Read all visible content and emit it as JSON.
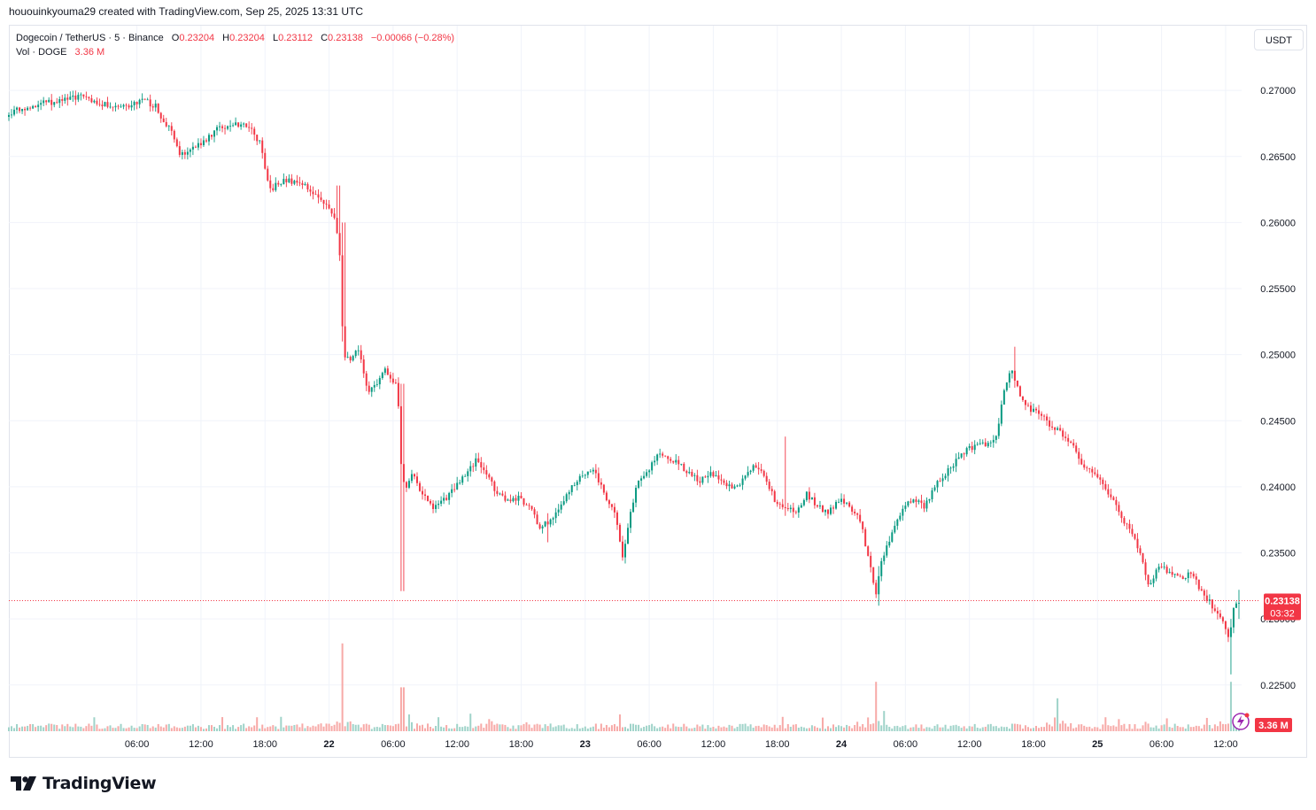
{
  "header": {
    "attribution": "hououinkyouma29 created with TradingView.com, Sep 25, 2025 13:31 UTC"
  },
  "legend": {
    "symbol": "Dogecoin / TetherUS · 5 · Binance",
    "open_label": "O",
    "open": "0.23204",
    "high_label": "H",
    "high": "0.23204",
    "low_label": "L",
    "low": "0.23112",
    "close_label": "C",
    "close": "0.23138",
    "change": "−0.00066 (−0.28%)",
    "vol_label": "Vol · DOGE",
    "vol_value": "3.36 M"
  },
  "currency_button": "USDT",
  "price_tag": {
    "price": "0.23138",
    "countdown": "03:32"
  },
  "volume_tag": "3.36 M",
  "footer": {
    "brand": "TradingView"
  },
  "colors": {
    "up": "#089981",
    "down": "#f23645",
    "grid": "#f0f3fa",
    "text": "#131722",
    "volume_up": "#9fd3c9",
    "volume_down": "#f7a9a7"
  },
  "chart_data": {
    "type": "candlestick",
    "interval": "5",
    "y_axis": {
      "ticks": [
        "0.27000",
        "0.26500",
        "0.26000",
        "0.25500",
        "0.25000",
        "0.24500",
        "0.24000",
        "0.23500",
        "0.23000",
        "0.22500"
      ],
      "ylim": [
        0.2215,
        0.2749
      ]
    },
    "x_axis": {
      "ticks": [
        {
          "label": "06:00",
          "t": 6
        },
        {
          "label": "12:00",
          "t": 12
        },
        {
          "label": "18:00",
          "t": 18
        },
        {
          "label": "22",
          "t": 24,
          "bold": true
        },
        {
          "label": "06:00",
          "t": 30
        },
        {
          "label": "12:00",
          "t": 36
        },
        {
          "label": "18:00",
          "t": 42
        },
        {
          "label": "23",
          "t": 48,
          "bold": true
        },
        {
          "label": "06:00",
          "t": 54
        },
        {
          "label": "12:00",
          "t": 60
        },
        {
          "label": "18:00",
          "t": 66
        },
        {
          "label": "24",
          "t": 72,
          "bold": true
        },
        {
          "label": "06:00",
          "t": 78
        },
        {
          "label": "12:00",
          "t": 84
        },
        {
          "label": "18:00",
          "t": 90
        },
        {
          "label": "25",
          "t": 96,
          "bold": true
        },
        {
          "label": "06:00",
          "t": 102
        },
        {
          "label": "12:00",
          "t": 108
        }
      ],
      "xlim": [
        -6,
        109.5
      ]
    },
    "price_path": [
      [
        -6,
        0.268
      ],
      [
        -5,
        0.2685
      ],
      [
        -3,
        0.269
      ],
      [
        -1,
        0.2692
      ],
      [
        1,
        0.2695
      ],
      [
        3,
        0.269
      ],
      [
        5,
        0.2688
      ],
      [
        6,
        0.269
      ],
      [
        7,
        0.2692
      ],
      [
        8,
        0.2688
      ],
      [
        8.5,
        0.268
      ],
      [
        9.5,
        0.267
      ],
      [
        10.3,
        0.265
      ],
      [
        11,
        0.2655
      ],
      [
        12,
        0.2658
      ],
      [
        13,
        0.2665
      ],
      [
        14,
        0.2672
      ],
      [
        16,
        0.2675
      ],
      [
        17,
        0.267
      ],
      [
        17.8,
        0.266
      ],
      [
        18.3,
        0.264
      ],
      [
        18.8,
        0.2625
      ],
      [
        19.5,
        0.263
      ],
      [
        20.5,
        0.2632
      ],
      [
        21.5,
        0.263
      ],
      [
        22.5,
        0.2625
      ],
      [
        23,
        0.262
      ],
      [
        23.8,
        0.2615
      ],
      [
        24.3,
        0.2608
      ],
      [
        24.8,
        0.2603
      ],
      [
        25.3,
        0.257
      ],
      [
        25.6,
        0.25
      ],
      [
        26.3,
        0.2495
      ],
      [
        27,
        0.2505
      ],
      [
        28,
        0.247
      ],
      [
        28.8,
        0.248
      ],
      [
        29.5,
        0.249
      ],
      [
        30.3,
        0.248
      ],
      [
        30.7,
        0.2475
      ],
      [
        30.9,
        0.242
      ],
      [
        31.4,
        0.2395
      ],
      [
        32,
        0.241
      ],
      [
        33,
        0.2395
      ],
      [
        34,
        0.2385
      ],
      [
        35,
        0.239
      ],
      [
        36,
        0.2398
      ],
      [
        37,
        0.241
      ],
      [
        38,
        0.242
      ],
      [
        39,
        0.241
      ],
      [
        40,
        0.2395
      ],
      [
        41,
        0.239
      ],
      [
        42,
        0.2392
      ],
      [
        43,
        0.2385
      ],
      [
        44,
        0.237
      ],
      [
        45,
        0.2375
      ],
      [
        46,
        0.2385
      ],
      [
        47,
        0.24
      ],
      [
        48,
        0.241
      ],
      [
        49,
        0.2415
      ],
      [
        50,
        0.2395
      ],
      [
        51,
        0.238
      ],
      [
        51.8,
        0.2345
      ],
      [
        52.5,
        0.238
      ],
      [
        53,
        0.24
      ],
      [
        54,
        0.241
      ],
      [
        55,
        0.2425
      ],
      [
        56,
        0.242
      ],
      [
        57,
        0.2418
      ],
      [
        58,
        0.241
      ],
      [
        59,
        0.2405
      ],
      [
        60,
        0.241
      ],
      [
        61,
        0.2405
      ],
      [
        62,
        0.2398
      ],
      [
        63,
        0.2405
      ],
      [
        64,
        0.2415
      ],
      [
        65,
        0.241
      ],
      [
        66,
        0.239
      ],
      [
        67,
        0.2385
      ],
      [
        68,
        0.238
      ],
      [
        69,
        0.2395
      ],
      [
        70,
        0.2385
      ],
      [
        71,
        0.238
      ],
      [
        72,
        0.239
      ],
      [
        73,
        0.2385
      ],
      [
        74,
        0.2375
      ],
      [
        74.8,
        0.2345
      ],
      [
        75.5,
        0.2318
      ],
      [
        76,
        0.2345
      ],
      [
        77,
        0.2365
      ],
      [
        78,
        0.2385
      ],
      [
        79,
        0.239
      ],
      [
        80,
        0.2385
      ],
      [
        81,
        0.24
      ],
      [
        82,
        0.241
      ],
      [
        83,
        0.242
      ],
      [
        84,
        0.2428
      ],
      [
        85,
        0.2432
      ],
      [
        86,
        0.2432
      ],
      [
        86.8,
        0.244
      ],
      [
        87.5,
        0.2475
      ],
      [
        88.2,
        0.249
      ],
      [
        89,
        0.247
      ],
      [
        90,
        0.2458
      ],
      [
        91,
        0.2455
      ],
      [
        92,
        0.2445
      ],
      [
        93,
        0.244
      ],
      [
        94,
        0.243
      ],
      [
        95,
        0.2415
      ],
      [
        96,
        0.241
      ],
      [
        97,
        0.24
      ],
      [
        98,
        0.2385
      ],
      [
        99,
        0.237
      ],
      [
        100,
        0.2355
      ],
      [
        100.5,
        0.2345
      ],
      [
        101,
        0.2325
      ],
      [
        102,
        0.234
      ],
      [
        103,
        0.2335
      ],
      [
        104,
        0.233
      ],
      [
        105,
        0.2335
      ],
      [
        105.5,
        0.2328
      ],
      [
        106,
        0.232
      ],
      [
        107,
        0.231
      ],
      [
        108,
        0.23
      ],
      [
        108.4,
        0.2285
      ],
      [
        108.7,
        0.229
      ],
      [
        109,
        0.231
      ],
      [
        109.3,
        0.2314
      ]
    ],
    "wicks": [
      {
        "t": 24.9,
        "high": 0.2628,
        "low": 0.26
      },
      {
        "t": 25.4,
        "high": 0.26,
        "low": 0.251
      },
      {
        "t": 30.9,
        "high": 0.2478,
        "low": 0.2321
      },
      {
        "t": 44.5,
        "high": 0.238,
        "low": 0.2358
      },
      {
        "t": 51.8,
        "high": 0.236,
        "low": 0.2342
      },
      {
        "t": 66.8,
        "high": 0.2438,
        "low": 0.2378
      },
      {
        "t": 75.5,
        "high": 0.234,
        "low": 0.231
      },
      {
        "t": 88.2,
        "high": 0.2506,
        "low": 0.2475
      },
      {
        "t": 108.4,
        "high": 0.23,
        "low": 0.2258
      },
      {
        "t": 109.2,
        "high": 0.2322,
        "low": 0.23
      }
    ],
    "volume_spikes": [
      {
        "t": 25.2,
        "v": 0.16
      },
      {
        "t": 30.9,
        "v": 0.08
      },
      {
        "t": 75.2,
        "v": 0.09
      },
      {
        "t": 92.2,
        "v": 0.06
      },
      {
        "t": 108.4,
        "v": 0.09
      }
    ],
    "last_price": 0.23138
  }
}
